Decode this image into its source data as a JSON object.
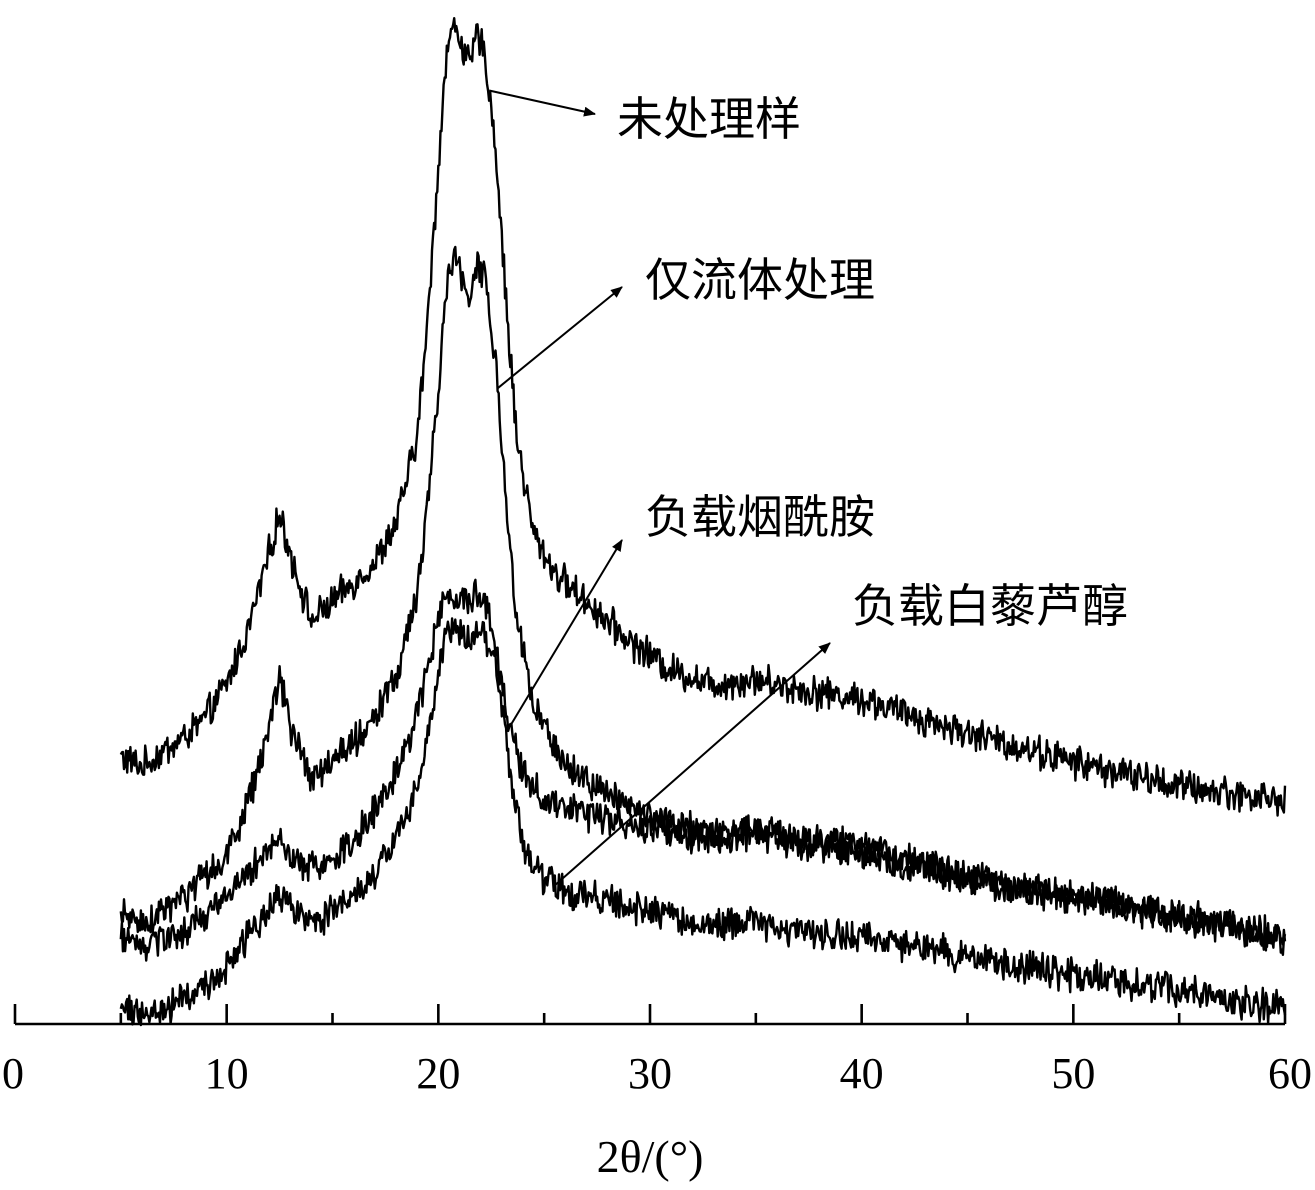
{
  "chart_data": {
    "type": "line",
    "xlabel": "2θ/(°)",
    "xlim": [
      0,
      60
    ],
    "x_major_ticks": [
      0,
      10,
      20,
      30,
      40,
      50,
      60
    ],
    "x_minor_ticks": [
      5,
      15,
      25,
      35,
      45,
      55
    ],
    "x_tick_labels": [
      "0",
      "10",
      "20",
      "30",
      "40",
      "50",
      "60"
    ],
    "y_axis": "hidden",
    "grid": false,
    "legend": "annotations with arrows",
    "series": [
      {
        "name": "未处理样",
        "x_range": [
          5,
          60
        ],
        "color": "#000000",
        "profile": [
          [
            5,
            0.23
          ],
          [
            6,
            0.22
          ],
          [
            7,
            0.235
          ],
          [
            8,
            0.25
          ],
          [
            9,
            0.27
          ],
          [
            10,
            0.305
          ],
          [
            11,
            0.36
          ],
          [
            12,
            0.44
          ],
          [
            12.5,
            0.48
          ],
          [
            13,
            0.44
          ],
          [
            14,
            0.37
          ],
          [
            15,
            0.39
          ],
          [
            16,
            0.41
          ],
          [
            17,
            0.43
          ],
          [
            18,
            0.47
          ],
          [
            19,
            0.56
          ],
          [
            19.5,
            0.68
          ],
          [
            20,
            0.84
          ],
          [
            20.4,
            0.96
          ],
          [
            20.8,
            0.985
          ],
          [
            21.2,
            0.96
          ],
          [
            21.5,
            0.94
          ],
          [
            21.8,
            0.975
          ],
          [
            22.2,
            0.955
          ],
          [
            22.7,
            0.86
          ],
          [
            23.2,
            0.7
          ],
          [
            23.7,
            0.56
          ],
          [
            24.5,
            0.46
          ],
          [
            25.5,
            0.42
          ],
          [
            27,
            0.39
          ],
          [
            29,
            0.35
          ],
          [
            31,
            0.32
          ],
          [
            33,
            0.305
          ],
          [
            35,
            0.31
          ],
          [
            37,
            0.3
          ],
          [
            40,
            0.29
          ],
          [
            42,
            0.275
          ],
          [
            45,
            0.255
          ],
          [
            50,
            0.225
          ],
          [
            55,
            0.2
          ],
          [
            60,
            0.185
          ]
        ]
      },
      {
        "name": "仅流体处理",
        "x_range": [
          5,
          60
        ],
        "color": "#000000",
        "profile": [
          [
            5,
            0.065
          ],
          [
            6,
            0.06
          ],
          [
            7,
            0.07
          ],
          [
            8,
            0.085
          ],
          [
            9,
            0.105
          ],
          [
            10,
            0.13
          ],
          [
            11,
            0.18
          ],
          [
            12,
            0.26
          ],
          [
            12.5,
            0.31
          ],
          [
            13,
            0.26
          ],
          [
            14,
            0.21
          ],
          [
            15,
            0.225
          ],
          [
            16,
            0.245
          ],
          [
            17,
            0.27
          ],
          [
            18,
            0.31
          ],
          [
            19,
            0.4
          ],
          [
            19.5,
            0.49
          ],
          [
            20,
            0.61
          ],
          [
            20.4,
            0.715
          ],
          [
            20.8,
            0.745
          ],
          [
            21.2,
            0.72
          ],
          [
            21.5,
            0.7
          ],
          [
            21.8,
            0.74
          ],
          [
            22.2,
            0.725
          ],
          [
            22.7,
            0.64
          ],
          [
            23.2,
            0.49
          ],
          [
            23.7,
            0.37
          ],
          [
            24.5,
            0.28
          ],
          [
            25.5,
            0.24
          ],
          [
            27,
            0.205
          ],
          [
            29,
            0.18
          ],
          [
            31,
            0.16
          ],
          [
            33,
            0.15
          ],
          [
            35,
            0.155
          ],
          [
            37,
            0.145
          ],
          [
            40,
            0.14
          ],
          [
            42,
            0.125
          ],
          [
            45,
            0.105
          ],
          [
            50,
            0.085
          ],
          [
            55,
            0.065
          ],
          [
            60,
            0.045
          ]
        ]
      },
      {
        "name": "负载烟酰胺",
        "x_range": [
          5,
          60
        ],
        "color": "#000000",
        "profile": [
          [
            5,
            0.045
          ],
          [
            6,
            0.035
          ],
          [
            7,
            0.04
          ],
          [
            8,
            0.05
          ],
          [
            9,
            0.065
          ],
          [
            10,
            0.085
          ],
          [
            11,
            0.11
          ],
          [
            12,
            0.135
          ],
          [
            12.5,
            0.145
          ],
          [
            13,
            0.13
          ],
          [
            14,
            0.115
          ],
          [
            15,
            0.125
          ],
          [
            16,
            0.145
          ],
          [
            17,
            0.175
          ],
          [
            18,
            0.215
          ],
          [
            19,
            0.275
          ],
          [
            19.5,
            0.32
          ],
          [
            20,
            0.375
          ],
          [
            20.5,
            0.4
          ],
          [
            21,
            0.395
          ],
          [
            21.5,
            0.385
          ],
          [
            21.9,
            0.405
          ],
          [
            22.3,
            0.385
          ],
          [
            22.8,
            0.33
          ],
          [
            23.3,
            0.27
          ],
          [
            24,
            0.215
          ],
          [
            25,
            0.185
          ],
          [
            26,
            0.175
          ],
          [
            28,
            0.165
          ],
          [
            30,
            0.155
          ],
          [
            33,
            0.145
          ],
          [
            35,
            0.15
          ],
          [
            37,
            0.14
          ],
          [
            40,
            0.13
          ],
          [
            42,
            0.12
          ],
          [
            45,
            0.105
          ],
          [
            50,
            0.085
          ],
          [
            55,
            0.065
          ],
          [
            60,
            0.045
          ]
        ]
      },
      {
        "name": "负载白藜芦醇",
        "x_range": [
          5,
          60
        ],
        "color": "#000000",
        "profile": [
          [
            5,
            -0.03
          ],
          [
            6,
            -0.035
          ],
          [
            7,
            -0.03
          ],
          [
            8,
            -0.02
          ],
          [
            9,
            -0.005
          ],
          [
            10,
            0.015
          ],
          [
            11,
            0.045
          ],
          [
            12,
            0.075
          ],
          [
            12.5,
            0.09
          ],
          [
            13,
            0.075
          ],
          [
            14,
            0.06
          ],
          [
            15,
            0.07
          ],
          [
            16,
            0.085
          ],
          [
            17,
            0.11
          ],
          [
            18,
            0.145
          ],
          [
            19,
            0.2
          ],
          [
            19.5,
            0.255
          ],
          [
            20,
            0.32
          ],
          [
            20.4,
            0.36
          ],
          [
            20.8,
            0.365
          ],
          [
            21.2,
            0.355
          ],
          [
            21.6,
            0.35
          ],
          [
            22,
            0.365
          ],
          [
            22.5,
            0.345
          ],
          [
            23,
            0.28
          ],
          [
            23.5,
            0.2
          ],
          [
            24,
            0.14
          ],
          [
            25,
            0.105
          ],
          [
            26,
            0.09
          ],
          [
            28,
            0.08
          ],
          [
            30,
            0.07
          ],
          [
            33,
            0.055
          ],
          [
            35,
            0.06
          ],
          [
            37,
            0.05
          ],
          [
            40,
            0.045
          ],
          [
            45,
            0.025
          ],
          [
            50,
            0.005
          ],
          [
            55,
            -0.01
          ],
          [
            60,
            -0.03
          ]
        ]
      }
    ],
    "annotations": [
      {
        "text": "未处理样",
        "arrow_from_x": 22.4,
        "arrow_from_series": "未处理样"
      },
      {
        "text": "仅流体处理",
        "arrow_from_x": 22.8,
        "arrow_from_series": "仅流体处理"
      },
      {
        "text": "负载烟酰胺",
        "arrow_from_x": 23.4,
        "arrow_from_series": "负载烟酰胺"
      },
      {
        "text": "负载白藜芦醇",
        "arrow_from_x": 25.5,
        "arrow_from_series": "负载白藜芦醇"
      }
    ]
  }
}
